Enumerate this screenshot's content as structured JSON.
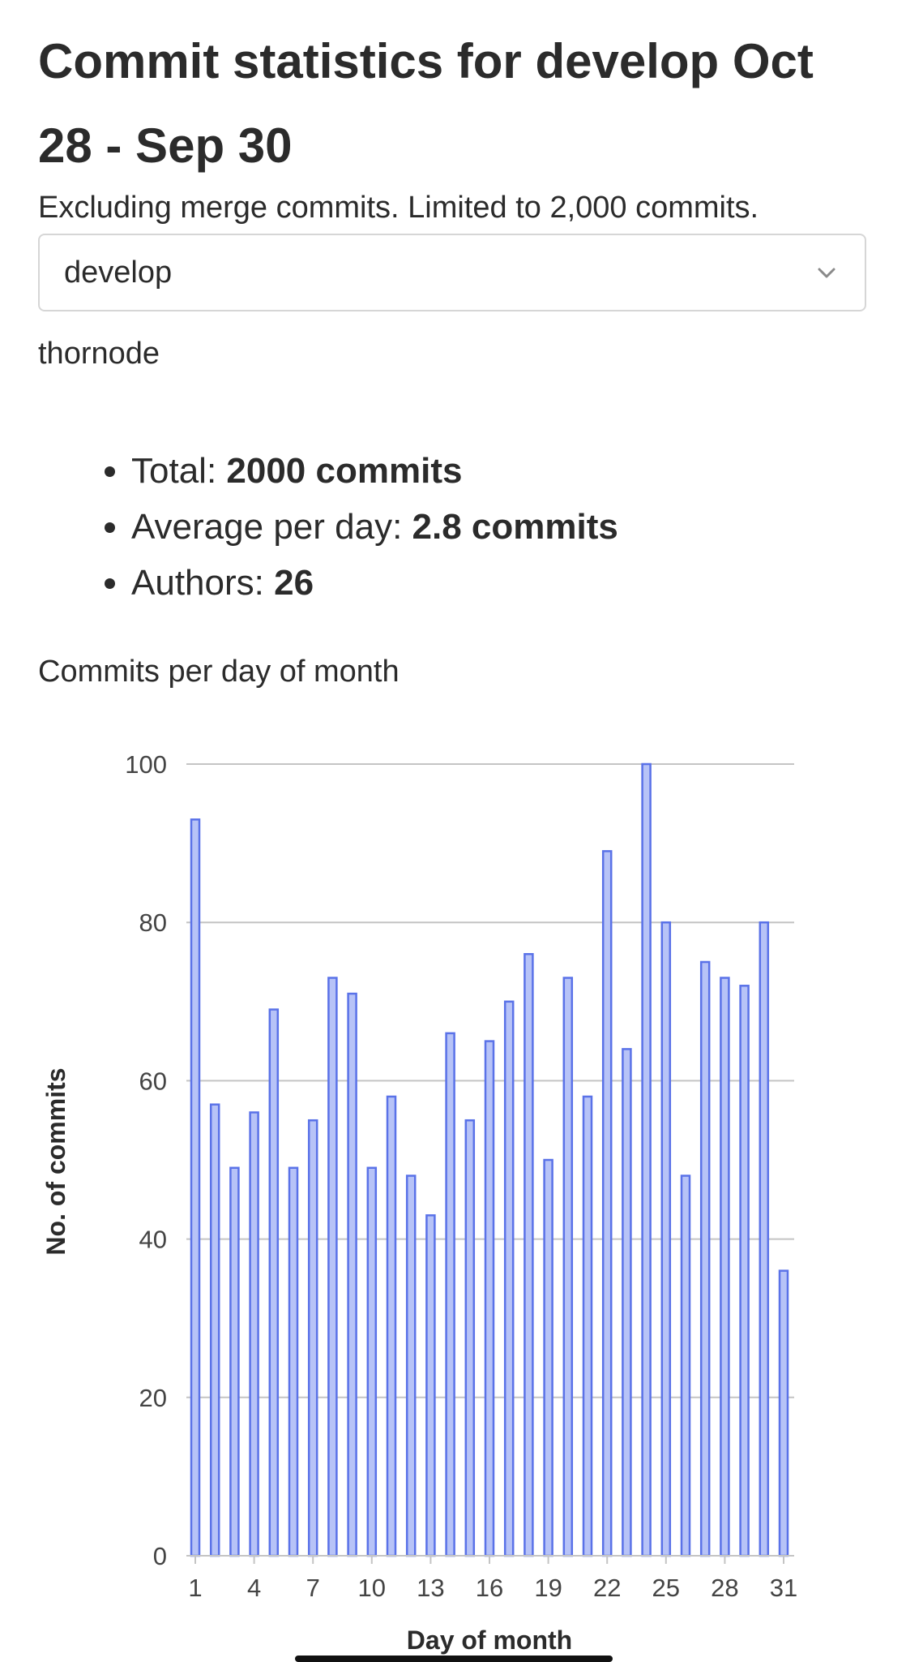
{
  "header": {
    "title_prefix": "Commit statistics for ",
    "title_branch": "develop",
    "title_range": " Oct 28 - Sep 30",
    "subtitle": "Excluding merge commits. Limited to 2,000 commits."
  },
  "branch_select": {
    "value": "develop",
    "icon": "chevron-down-icon"
  },
  "project": "thornode",
  "stats": [
    {
      "label": "Total: ",
      "value": "2000 commits"
    },
    {
      "label": "Average per day: ",
      "value": "2.8 commits"
    },
    {
      "label": "Authors: ",
      "value": "26"
    }
  ],
  "chart_heading": "Commits per day of month",
  "colors": {
    "bar_fill": "#b7c3f7",
    "bar_stroke": "#5a72e8",
    "grid": "#c4c4c4"
  },
  "chart_data": {
    "type": "bar",
    "title": "Commits per day of month",
    "xlabel": "Day of month",
    "ylabel": "No. of commits",
    "ylim": [
      0,
      100
    ],
    "yticks": [
      0,
      20,
      40,
      60,
      80,
      100
    ],
    "xticks": [
      1,
      4,
      7,
      10,
      13,
      16,
      19,
      22,
      25,
      28,
      31
    ],
    "categories": [
      1,
      2,
      3,
      4,
      5,
      6,
      7,
      8,
      9,
      10,
      11,
      12,
      13,
      14,
      15,
      16,
      17,
      18,
      19,
      20,
      21,
      22,
      23,
      24,
      25,
      26,
      27,
      28,
      29,
      30,
      31
    ],
    "values": [
      93,
      57,
      49,
      56,
      69,
      49,
      55,
      73,
      71,
      49,
      58,
      48,
      43,
      66,
      55,
      65,
      70,
      76,
      50,
      73,
      58,
      89,
      64,
      100,
      80,
      48,
      75,
      73,
      72,
      80,
      36
    ]
  }
}
